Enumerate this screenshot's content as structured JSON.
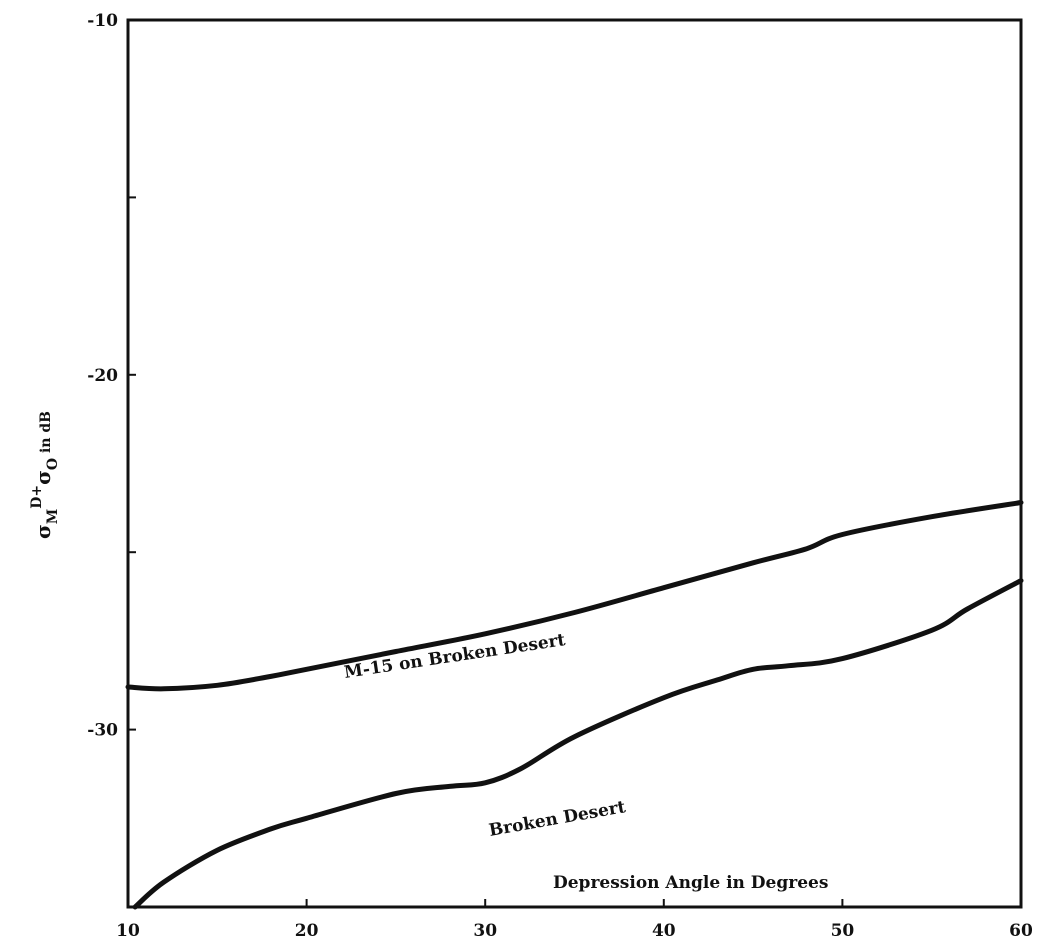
{
  "chart_data": {
    "type": "line",
    "xlabel": "Depression Angle in Degrees",
    "ylabel": {
      "sigma1": "σ",
      "sub1": "M",
      "sup": "D",
      "plus": "+",
      "sigma2": "σ",
      "sub2": "O",
      "rest": " in dB"
    },
    "xlim": [
      10,
      60
    ],
    "ylim": [
      -35,
      -10
    ],
    "x_ticks": [
      10,
      20,
      30,
      40,
      50,
      60
    ],
    "y_ticks_labeled": [
      -10,
      -20,
      -30
    ],
    "y_ticks_minor": [
      -15,
      -25
    ],
    "x_tick_labels": [
      "10",
      "20",
      "30",
      "40",
      "50",
      "60"
    ],
    "y_tick_labels": [
      "-10",
      "-20",
      "-30"
    ],
    "grid": false,
    "series": [
      {
        "name": "M-15 on Broken Desert",
        "x": [
          10,
          12,
          15,
          18,
          20,
          25,
          30,
          35,
          40,
          45,
          48,
          50,
          55,
          60
        ],
        "y": [
          -28.8,
          -28.85,
          -28.75,
          -28.5,
          -28.3,
          -27.8,
          -27.3,
          -26.7,
          -26.0,
          -25.3,
          -24.9,
          -24.5,
          -24.0,
          -23.6
        ]
      },
      {
        "name": "Broken Desert",
        "x": [
          10.4,
          12,
          15,
          18,
          20,
          25,
          28,
          30,
          32,
          35,
          40,
          43,
          45,
          47,
          50,
          55,
          57,
          60
        ],
        "y": [
          -35.0,
          -34.3,
          -33.4,
          -32.8,
          -32.5,
          -31.8,
          -31.6,
          -31.5,
          -31.1,
          -30.2,
          -29.1,
          -28.6,
          -28.3,
          -28.2,
          -28.0,
          -27.2,
          -26.6,
          -25.8
        ]
      }
    ]
  }
}
